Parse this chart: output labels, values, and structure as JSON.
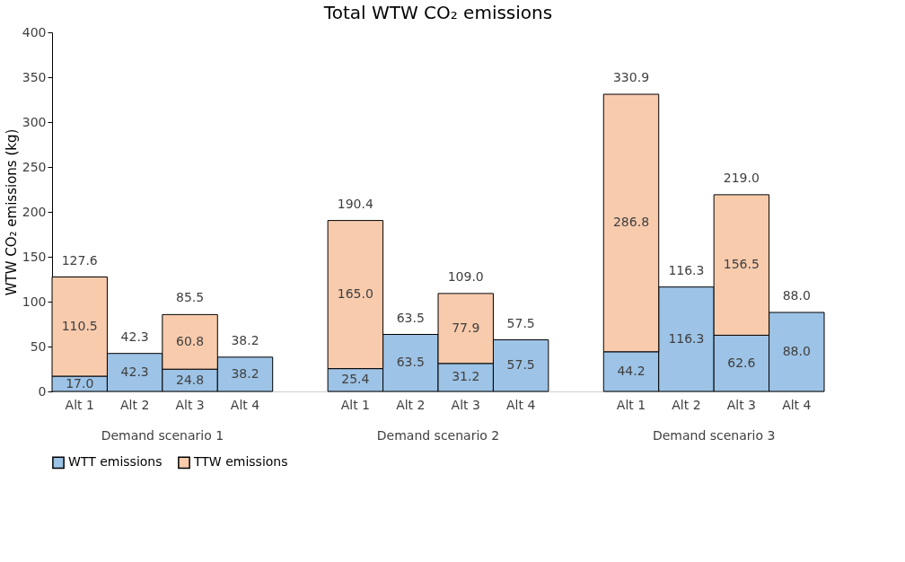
{
  "chart_data": {
    "type": "bar",
    "title": "Total WTW CO₂ emissions",
    "ylabel": "WTW CO₂ emissions (kg)",
    "categories": [
      "Alt 1",
      "Alt 2",
      "Alt 3",
      "Alt 4",
      "Alt 1",
      "Alt 2",
      "Alt 3",
      "Alt 4",
      "Alt 1",
      "Alt 2",
      "Alt 3",
      "Alt 4"
    ],
    "series": [
      {
        "name": "WTT  emissions",
        "color": "#9dc3e6",
        "values": [
          17.0,
          42.3,
          24.8,
          38.2,
          25.4,
          63.5,
          31.2,
          57.5,
          44.2,
          116.3,
          62.6,
          88.0
        ],
        "value_labels": [
          "17.0",
          "42.3",
          "24.8",
          "38.2",
          "25.4",
          "63.5",
          "31.2",
          "57.5",
          "44.2",
          "116.3",
          "62.6",
          "88.0"
        ]
      },
      {
        "name": "TTW emissions",
        "color": "#f8cbad",
        "values": [
          110.5,
          null,
          60.8,
          null,
          165.0,
          null,
          77.9,
          null,
          286.8,
          null,
          156.5,
          null
        ],
        "value_labels": [
          "110.5",
          null,
          "60.8",
          null,
          "165.0",
          null,
          "77.9",
          null,
          "286.8",
          null,
          "156.5",
          null
        ]
      }
    ],
    "stacked": true,
    "totals": [
      "127.6",
      "42.3",
      "85.5",
      "38.2",
      "190.4",
      "63.5",
      "109.0",
      "57.5",
      "330.9",
      "116.3",
      "219.0",
      "88.0"
    ],
    "annotations": [
      "Demand scenario 1",
      "Demand scenario 2",
      "Demand scenario 3"
    ],
    "ylim": [
      0,
      400
    ],
    "yticks": [
      0,
      50,
      100,
      150,
      200,
      250,
      300,
      350,
      400
    ],
    "grid": false,
    "legend": "bottom"
  }
}
